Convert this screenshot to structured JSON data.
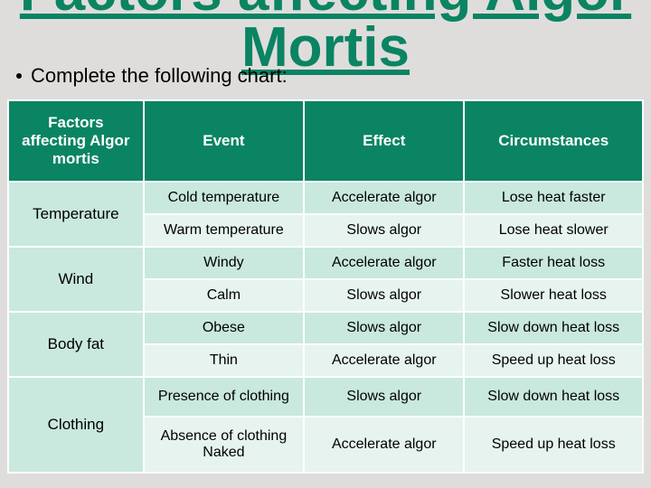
{
  "title": "Factors affecting Algor Mortis",
  "bullet": "Complete the following chart:",
  "table": {
    "headers": [
      "Factors affecting Algor mortis",
      "Event",
      "Effect",
      "Circumstances"
    ],
    "groups": [
      {
        "factor": "Temperature",
        "rows": [
          {
            "event": "Cold temperature",
            "effect": "Accelerate algor",
            "circ": "Lose heat faster"
          },
          {
            "event": "Warm temperature",
            "effect": "Slows algor",
            "circ": "Lose heat slower"
          }
        ]
      },
      {
        "factor": "Wind",
        "rows": [
          {
            "event": "Windy",
            "effect": "Accelerate algor",
            "circ": "Faster heat loss"
          },
          {
            "event": "Calm",
            "effect": "Slows algor",
            "circ": "Slower heat loss"
          }
        ]
      },
      {
        "factor": "Body fat",
        "rows": [
          {
            "event": "Obese",
            "effect": "Slows algor",
            "circ": "Slow down heat loss"
          },
          {
            "event": "Thin",
            "effect": "Accelerate algor",
            "circ": "Speed up heat loss"
          }
        ]
      },
      {
        "factor": "Clothing",
        "rows": [
          {
            "event": "Presence of clothing",
            "effect": "Slows algor",
            "circ": "Slow down heat loss"
          },
          {
            "event": "Absence of clothing Naked",
            "effect": "Accelerate algor",
            "circ": "Speed up heat loss"
          }
        ]
      }
    ]
  },
  "colors": {
    "background": "#dfdddc",
    "accent": "#0a8462",
    "band_a": "#c9e8de",
    "band_b": "#e6f3ee"
  }
}
